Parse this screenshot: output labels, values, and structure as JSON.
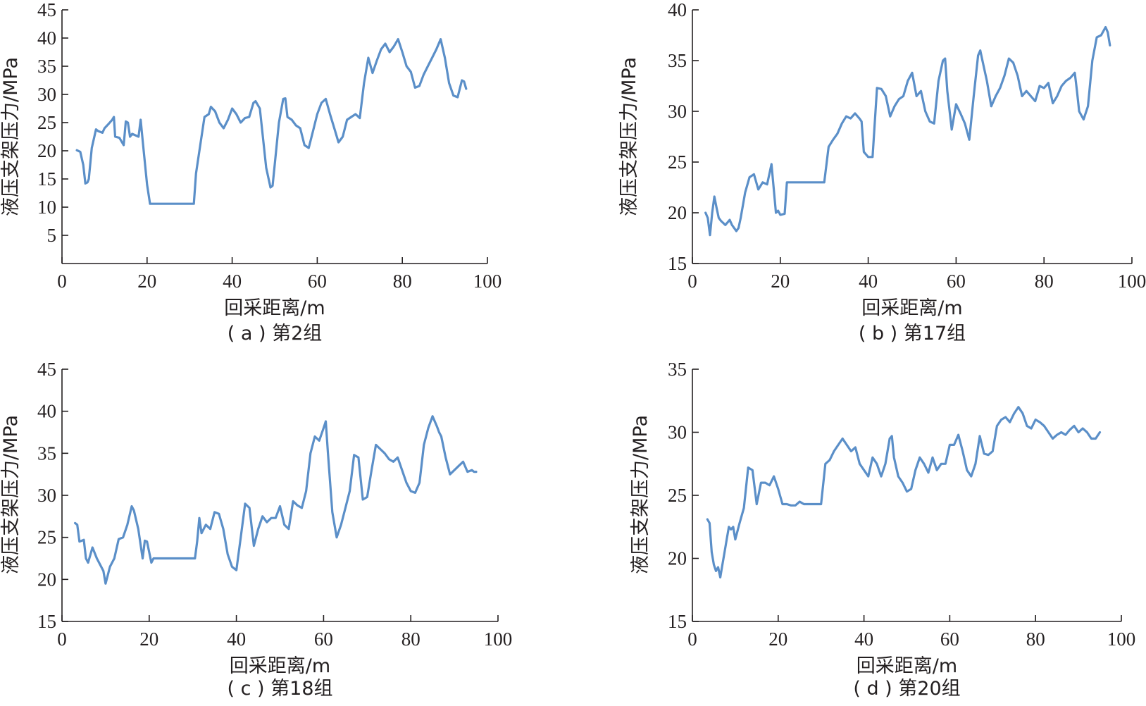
{
  "chart_data": [
    {
      "type": "line",
      "caption": "( a ) 第2组",
      "xlabel": "回采距离/m",
      "ylabel": "液压支架压力/MPa",
      "xlim": [
        0,
        100
      ],
      "ylim": [
        0,
        45
      ],
      "xticks": [
        0,
        20,
        40,
        60,
        80,
        100
      ],
      "yticks": [
        5,
        10,
        15,
        20,
        25,
        30,
        35,
        40,
        45
      ],
      "grid": false,
      "color": "#5b8fc8",
      "series": [
        {
          "x": [
            3.5,
            4.3,
            5.0,
            5.5,
            6.0,
            6.3,
            7.0,
            8.0,
            8.5,
            9.5,
            10.0,
            11.0,
            11.8,
            12.2,
            12.5,
            13.5,
            14.5,
            15.0,
            15.5,
            16.0,
            16.5,
            18.0,
            18.5,
            19.0,
            20.0,
            20.7,
            21.0,
            31.0,
            31.5,
            32.5,
            33.5,
            34.5,
            35.0,
            36.0,
            37.0,
            38.0,
            39.0,
            40.0,
            41.0,
            42.0,
            43.0,
            44.0,
            45.0,
            45.5,
            46.5,
            47.0,
            48.0,
            49.0,
            49.5,
            50.0,
            51.0,
            52.0,
            52.5,
            53.0,
            54.0,
            55.0,
            56.0,
            57.0,
            58.0,
            59.0,
            60.0,
            61.0,
            62.0,
            63.0,
            64.0,
            65.0,
            66.0,
            67.0,
            68.0,
            69.0,
            70.0,
            71.0,
            72.0,
            73.0,
            74.0,
            75.0,
            76.0,
            77.0,
            78.0,
            79.0,
            80.0,
            81.0,
            82.0,
            83.0,
            84.0,
            85.0,
            86.0,
            87.0,
            88.0,
            89.0,
            90.0,
            91.0,
            92.0,
            93.0,
            94.0,
            94.5,
            95.0
          ],
          "y": [
            20.1,
            19.8,
            17.5,
            14.2,
            14.4,
            15.0,
            20.5,
            23.8,
            23.5,
            23.2,
            24.0,
            24.8,
            25.5,
            26.0,
            22.5,
            22.3,
            21.0,
            25.2,
            25.0,
            22.5,
            23.0,
            22.5,
            25.5,
            21.5,
            14.0,
            10.6,
            10.6,
            10.6,
            16.0,
            21.0,
            26.0,
            26.5,
            27.8,
            27.0,
            25.0,
            24.0,
            25.5,
            27.5,
            26.5,
            25.0,
            25.8,
            26.0,
            28.5,
            28.8,
            27.5,
            24.0,
            17.0,
            13.5,
            13.8,
            17.5,
            25.0,
            29.2,
            29.3,
            26.0,
            25.5,
            24.5,
            24.0,
            21.0,
            20.5,
            23.5,
            26.5,
            28.5,
            29.2,
            26.5,
            24.0,
            21.5,
            22.5,
            25.5,
            26.0,
            26.5,
            25.8,
            32.0,
            36.5,
            33.8,
            36.0,
            38.0,
            39.0,
            37.5,
            38.5,
            39.8,
            37.5,
            35.0,
            34.0,
            31.2,
            31.5,
            33.5,
            35.0,
            36.5,
            38.0,
            39.8,
            36.5,
            32.0,
            29.8,
            29.5,
            32.5,
            32.3,
            31.0
          ]
        }
      ]
    },
    {
      "type": "line",
      "caption": "( b ) 第17组",
      "xlabel": "回采距离/m",
      "ylabel": "液压支架压力/MPa",
      "xlim": [
        0,
        100
      ],
      "ylim": [
        15,
        40
      ],
      "xticks": [
        0,
        20,
        40,
        60,
        80,
        100
      ],
      "yticks": [
        15,
        20,
        25,
        30,
        35,
        40
      ],
      "grid": false,
      "color": "#5b8fc8",
      "series": [
        {
          "x": [
            3.0,
            3.5,
            4.0,
            4.5,
            5.0,
            5.5,
            6.0,
            6.5,
            7.5,
            8.5,
            9.0,
            10.0,
            10.5,
            11.0,
            12.0,
            13.0,
            14.0,
            15.0,
            16.0,
            17.0,
            18.0,
            19.0,
            19.5,
            20.0,
            21.0,
            21.5,
            22.0,
            30.0,
            31.0,
            32.0,
            33.0,
            34.0,
            35.0,
            36.0,
            37.0,
            38.0,
            38.5,
            39.0,
            40.0,
            41.0,
            42.0,
            43.0,
            44.0,
            45.0,
            46.0,
            47.0,
            48.0,
            49.0,
            50.0,
            51.0,
            52.0,
            53.0,
            54.0,
            55.0,
            56.0,
            57.0,
            57.5,
            58.0,
            59.0,
            60.0,
            61.0,
            62.0,
            63.0,
            64.0,
            65.0,
            65.5,
            66.0,
            67.0,
            68.0,
            69.0,
            70.0,
            71.0,
            72.0,
            73.0,
            74.0,
            75.0,
            76.0,
            77.0,
            78.0,
            79.0,
            80.0,
            81.0,
            82.0,
            83.0,
            84.0,
            85.0,
            86.0,
            87.0,
            87.5,
            88.0,
            89.0,
            90.0,
            91.0,
            92.0,
            93.0,
            94.0,
            94.5,
            95.0
          ],
          "y": [
            20.0,
            19.5,
            17.8,
            20.0,
            21.6,
            20.5,
            19.5,
            19.2,
            18.8,
            19.3,
            18.8,
            18.2,
            18.5,
            19.5,
            22.0,
            23.5,
            23.8,
            22.3,
            23.0,
            22.8,
            24.8,
            20.0,
            20.2,
            19.8,
            19.9,
            23.0,
            23.0,
            23.0,
            26.5,
            27.2,
            27.8,
            28.8,
            29.5,
            29.3,
            29.8,
            29.3,
            29.0,
            26.0,
            25.5,
            25.5,
            32.3,
            32.2,
            31.5,
            29.5,
            30.5,
            31.2,
            31.5,
            33.0,
            33.8,
            31.5,
            32.0,
            30.0,
            29.0,
            28.8,
            33.0,
            35.0,
            35.2,
            32.0,
            28.2,
            30.7,
            29.8,
            28.8,
            27.2,
            31.5,
            35.5,
            36.0,
            35.0,
            33.0,
            30.5,
            31.5,
            32.3,
            33.5,
            35.2,
            34.8,
            33.5,
            31.5,
            32.0,
            31.5,
            31.0,
            32.5,
            32.3,
            32.8,
            30.8,
            31.5,
            32.5,
            33.0,
            33.3,
            33.8,
            32.0,
            30.0,
            29.2,
            30.5,
            35.0,
            37.3,
            37.5,
            38.3,
            37.8,
            36.5
          ]
        }
      ]
    },
    {
      "type": "line",
      "caption": "( c ) 第18组",
      "xlabel": "回采距离/m",
      "ylabel": "液压支架压力/MPa",
      "xlim": [
        0,
        100
      ],
      "ylim": [
        15,
        45
      ],
      "xticks": [
        0,
        20,
        40,
        60,
        80,
        100
      ],
      "yticks": [
        15,
        20,
        25,
        30,
        35,
        40,
        45
      ],
      "grid": false,
      "color": "#5b8fc8",
      "series": [
        {
          "x": [
            3.0,
            3.5,
            4.0,
            5.0,
            5.5,
            6.0,
            7.0,
            8.0,
            9.0,
            9.5,
            10.0,
            10.5,
            11.0,
            12.0,
            13.0,
            14.0,
            15.0,
            16.0,
            16.5,
            17.5,
            18.5,
            19.0,
            19.5,
            20.5,
            21.0,
            22.0,
            30.5,
            31.0,
            31.5,
            32.0,
            33.0,
            34.0,
            35.0,
            36.0,
            37.0,
            38.0,
            39.0,
            40.0,
            41.0,
            42.0,
            43.0,
            44.0,
            45.0,
            46.0,
            47.0,
            48.0,
            49.0,
            50.0,
            51.0,
            52.0,
            53.0,
            54.0,
            55.0,
            56.0,
            57.0,
            58.0,
            59.0,
            60.0,
            60.5,
            61.0,
            62.0,
            63.0,
            64.0,
            65.0,
            66.0,
            67.0,
            68.0,
            69.0,
            70.0,
            71.0,
            72.0,
            73.0,
            74.0,
            75.0,
            76.0,
            77.0,
            78.0,
            79.0,
            80.0,
            81.0,
            82.0,
            83.0,
            84.0,
            85.0,
            86.0,
            86.5,
            87.0,
            88.0,
            89.0,
            90.0,
            91.0,
            92.0,
            93.0,
            94.0,
            94.5,
            95.0
          ],
          "y": [
            26.7,
            26.5,
            24.5,
            24.7,
            22.5,
            22.0,
            23.8,
            22.5,
            21.5,
            21.0,
            19.5,
            20.5,
            21.5,
            22.5,
            24.8,
            25.0,
            26.5,
            28.7,
            28.2,
            26.0,
            22.5,
            24.6,
            24.5,
            22.0,
            22.5,
            22.5,
            22.5,
            24.5,
            27.3,
            25.5,
            26.5,
            26.0,
            28.0,
            27.8,
            26.0,
            23.0,
            21.5,
            21.1,
            25.0,
            29.0,
            28.5,
            24.0,
            26.0,
            27.5,
            26.8,
            27.3,
            27.3,
            28.7,
            26.5,
            26.0,
            29.3,
            28.8,
            28.5,
            30.5,
            35.0,
            37.0,
            36.5,
            38.0,
            38.8,
            35.0,
            28.0,
            25.0,
            26.5,
            28.5,
            30.5,
            34.8,
            34.5,
            29.5,
            29.8,
            33.0,
            36.0,
            35.5,
            35.0,
            34.3,
            34.0,
            34.5,
            33.0,
            31.5,
            30.5,
            30.3,
            31.5,
            36.0,
            38.0,
            39.4,
            38.2,
            37.5,
            37.0,
            34.5,
            32.5,
            33.0,
            33.5,
            34.0,
            32.8,
            33.0,
            32.8,
            32.8
          ]
        }
      ]
    },
    {
      "type": "line",
      "caption": "( d ) 第20组",
      "xlabel": "回采距离/m",
      "ylabel": "液压支架压力/MPa",
      "xlim": [
        0,
        100
      ],
      "ylim": [
        15,
        35
      ],
      "xticks": [
        0,
        20,
        40,
        60,
        80,
        100
      ],
      "yticks": [
        15,
        20,
        25,
        30,
        35
      ],
      "grid": false,
      "color": "#5b8fc8",
      "series": [
        {
          "x": [
            3.5,
            4.0,
            4.5,
            5.0,
            5.5,
            6.0,
            6.5,
            7.0,
            7.5,
            8.0,
            8.5,
            9.0,
            9.5,
            10.0,
            11.0,
            12.0,
            13.0,
            14.0,
            15.0,
            16.0,
            17.0,
            18.0,
            19.0,
            20.0,
            21.0,
            22.0,
            23.0,
            24.0,
            25.0,
            26.0,
            27.0,
            28.0,
            29.0,
            30.0,
            31.0,
            32.0,
            33.0,
            34.0,
            35.0,
            36.0,
            37.0,
            38.0,
            39.0,
            40.0,
            41.0,
            42.0,
            43.0,
            44.0,
            45.0,
            46.0,
            46.5,
            47.0,
            48.0,
            49.0,
            50.0,
            51.0,
            52.0,
            53.0,
            54.0,
            55.0,
            56.0,
            57.0,
            58.0,
            59.0,
            60.0,
            61.0,
            62.0,
            63.0,
            64.0,
            65.0,
            66.0,
            67.0,
            68.0,
            69.0,
            70.0,
            71.0,
            72.0,
            73.0,
            74.0,
            75.0,
            76.0,
            77.0,
            78.0,
            79.0,
            80.0,
            81.0,
            82.0,
            83.0,
            84.0,
            85.0,
            86.0,
            87.0,
            88.0,
            89.0,
            90.0,
            91.0,
            92.0,
            93.0,
            94.0,
            95.0
          ],
          "y": [
            23.1,
            22.8,
            20.5,
            19.5,
            19.0,
            19.3,
            18.5,
            19.5,
            20.5,
            21.5,
            22.5,
            22.3,
            22.5,
            21.5,
            22.8,
            24.0,
            27.2,
            27.0,
            24.3,
            26.0,
            26.0,
            25.8,
            26.5,
            25.5,
            24.3,
            24.3,
            24.2,
            24.2,
            24.5,
            24.3,
            24.3,
            24.3,
            24.3,
            24.3,
            27.5,
            27.8,
            28.5,
            29.0,
            29.5,
            29.0,
            28.5,
            28.8,
            27.5,
            27.0,
            26.5,
            28.0,
            27.5,
            26.5,
            27.5,
            29.5,
            29.7,
            28.0,
            26.5,
            26.0,
            25.3,
            25.5,
            27.0,
            28.0,
            27.5,
            26.8,
            28.0,
            27.0,
            27.5,
            27.5,
            29.0,
            29.0,
            29.8,
            28.5,
            27.0,
            26.5,
            27.5,
            29.7,
            28.3,
            28.2,
            28.5,
            30.5,
            31.0,
            31.2,
            30.8,
            31.5,
            32.0,
            31.5,
            30.5,
            30.3,
            31.0,
            30.8,
            30.5,
            30.0,
            29.5,
            29.8,
            30.0,
            29.8,
            30.2,
            30.5,
            30.0,
            30.3,
            30.0,
            29.5,
            29.5,
            30.0
          ]
        }
      ]
    }
  ]
}
